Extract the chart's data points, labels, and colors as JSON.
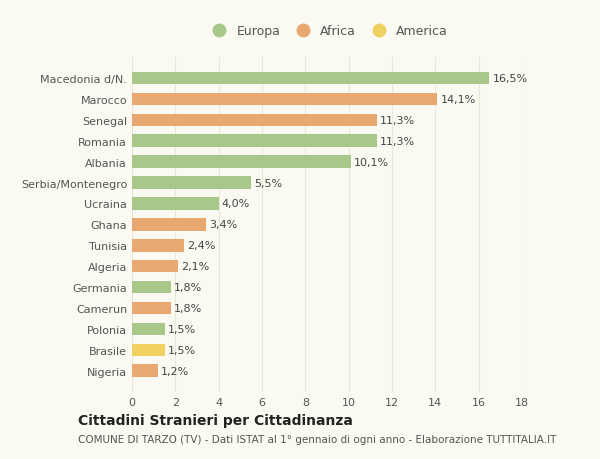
{
  "categories": [
    "Macedonia d/N.",
    "Marocco",
    "Senegal",
    "Romania",
    "Albania",
    "Serbia/Montenegro",
    "Ucraina",
    "Ghana",
    "Tunisia",
    "Algeria",
    "Germania",
    "Camerun",
    "Polonia",
    "Brasile",
    "Nigeria"
  ],
  "values": [
    16.5,
    14.1,
    11.3,
    11.3,
    10.1,
    5.5,
    4.0,
    3.4,
    2.4,
    2.1,
    1.8,
    1.8,
    1.5,
    1.5,
    1.2
  ],
  "labels": [
    "16,5%",
    "14,1%",
    "11,3%",
    "11,3%",
    "10,1%",
    "5,5%",
    "4,0%",
    "3,4%",
    "2,4%",
    "2,1%",
    "1,8%",
    "1,8%",
    "1,5%",
    "1,5%",
    "1,2%"
  ],
  "continents": [
    "Europa",
    "Africa",
    "Africa",
    "Europa",
    "Europa",
    "Europa",
    "Europa",
    "Africa",
    "Africa",
    "Africa",
    "Europa",
    "Africa",
    "Europa",
    "America",
    "Africa"
  ],
  "colors": {
    "Europa": "#a8c88a",
    "Africa": "#e8a870",
    "America": "#f0d060"
  },
  "title": "Cittadini Stranieri per Cittadinanza",
  "subtitle": "COMUNE DI TARZO (TV) - Dati ISTAT al 1° gennaio di ogni anno - Elaborazione TUTTITALIA.IT",
  "xlim": [
    0,
    18
  ],
  "xticks": [
    0,
    2,
    4,
    6,
    8,
    10,
    12,
    14,
    16,
    18
  ],
  "background_color": "#fafaf2",
  "grid_color": "#e8e8d8",
  "bar_height": 0.6,
  "title_fontsize": 10,
  "subtitle_fontsize": 7.5,
  "label_fontsize": 8,
  "tick_fontsize": 8,
  "legend_fontsize": 9
}
